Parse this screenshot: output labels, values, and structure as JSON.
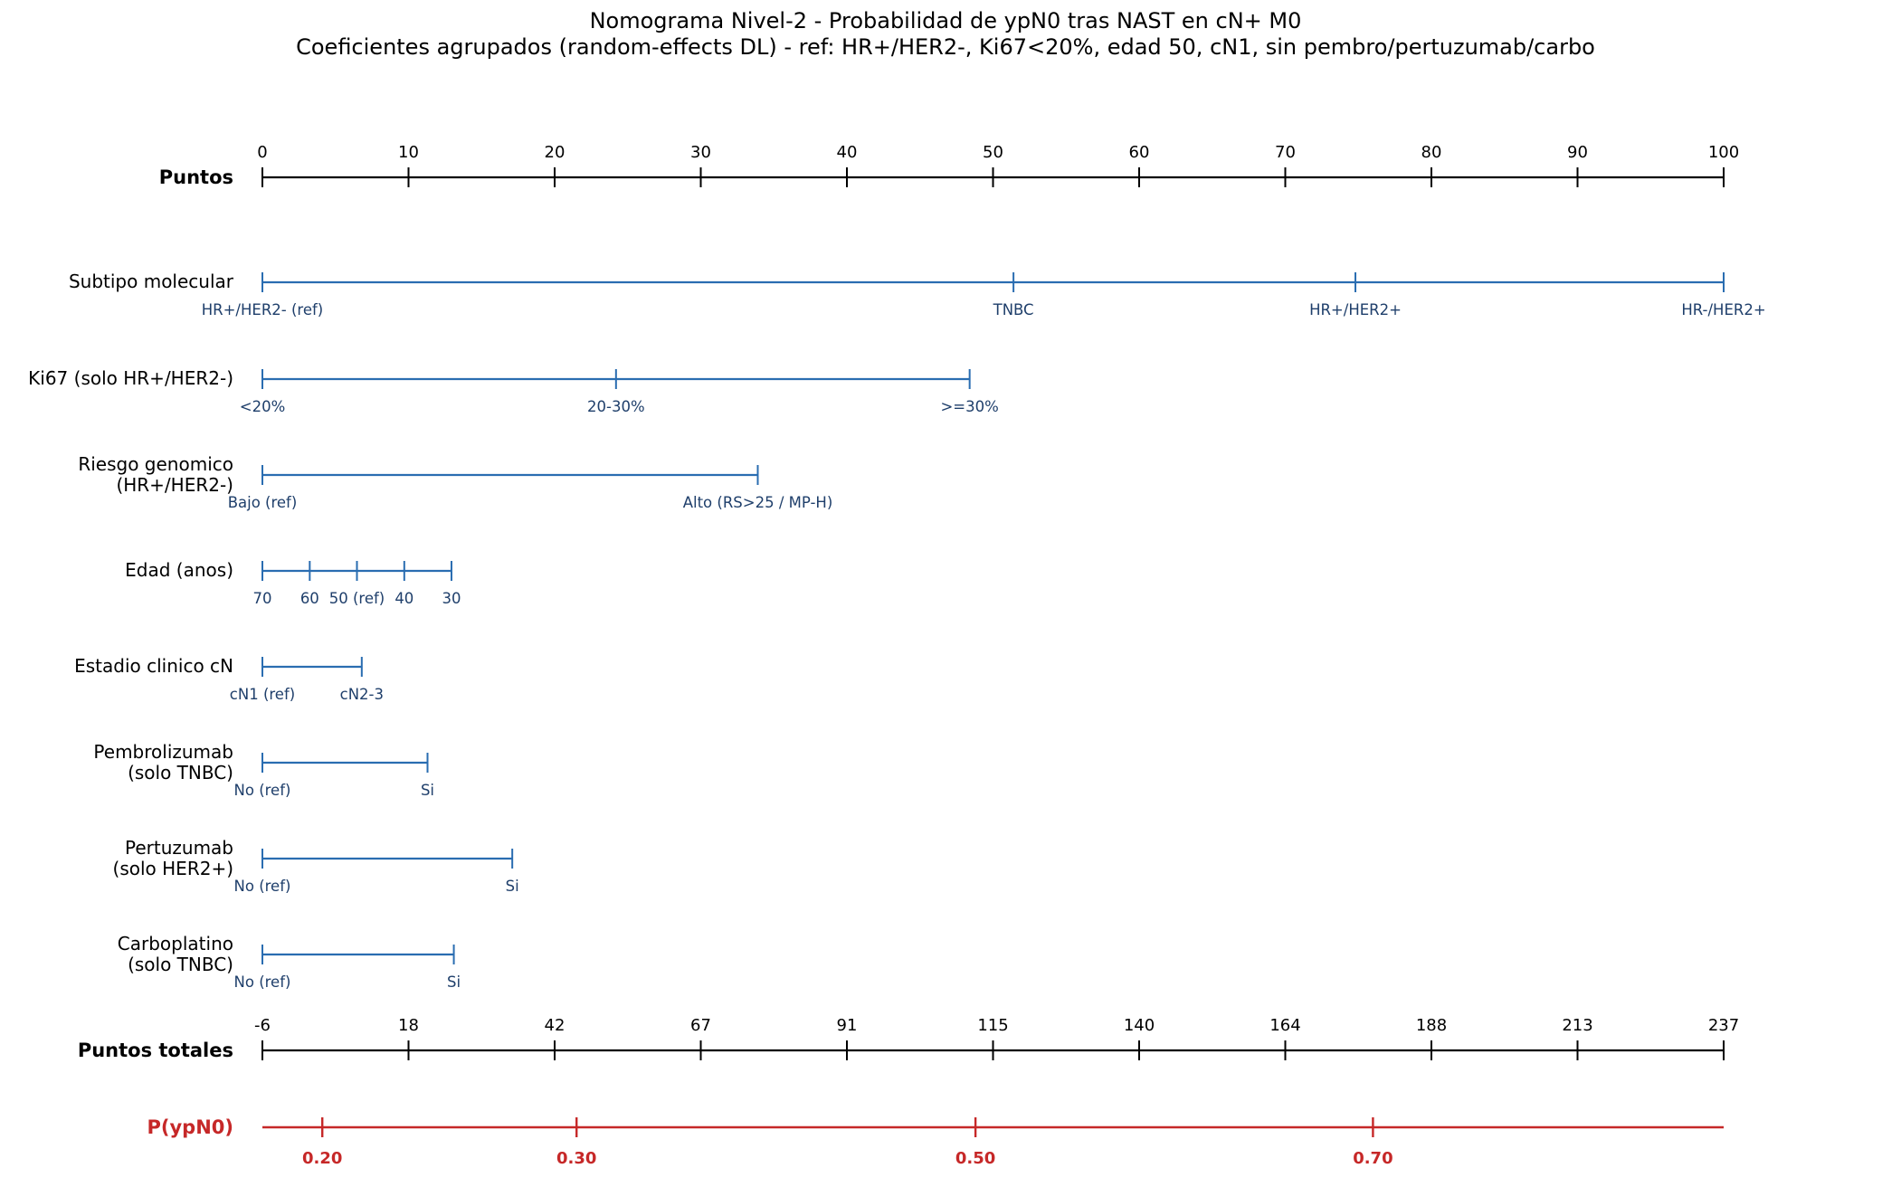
{
  "colors": {
    "axis": "#000000",
    "predictor": "#2a6db1",
    "predictor_text": "#1f3f6b",
    "probability": "#c62828"
  },
  "chart_data": {
    "type": "nomogram",
    "title": "Nomograma Nivel-2 - Probabilidad de ypN0 tras NAST en cN+ M0",
    "subtitle": "Coeficientes agrupados (random-effects DL) - ref: HR+/HER2-, Ki67<20%, edad 50, cN1, sin pembro/pertuzumab/carbo",
    "points_axis": {
      "label": "Puntos",
      "range": [
        0,
        100
      ],
      "ticks": [
        0,
        10,
        20,
        30,
        40,
        50,
        60,
        70,
        80,
        90,
        100
      ]
    },
    "predictors": [
      {
        "label": [
          "Subtipo molecular"
        ],
        "levels": [
          {
            "name": "HR+/HER2- (ref)",
            "points": 0
          },
          {
            "name": "TNBC",
            "points": 51.4
          },
          {
            "name": "HR+/HER2+",
            "points": 74.8
          },
          {
            "name": "HR-/HER2+",
            "points": 100
          }
        ]
      },
      {
        "label": [
          "Ki67 (solo HR+/HER2-)"
        ],
        "levels": [
          {
            "name": "<20%",
            "points": 0
          },
          {
            "name": "20-30%",
            "points": 24.2
          },
          {
            "name": ">=30%",
            "points": 48.4
          }
        ]
      },
      {
        "label": [
          "Riesgo genomico",
          "(HR+/HER2-)"
        ],
        "levels": [
          {
            "name": "Bajo (ref)",
            "points": 0
          },
          {
            "name": "Alto (RS>25 / MP-H)",
            "points": 33.9
          }
        ]
      },
      {
        "label": [
          "Edad (anos)"
        ],
        "levels": [
          {
            "name": "70",
            "points": 0
          },
          {
            "name": "60",
            "points": 3.24
          },
          {
            "name": "50 (ref)",
            "points": 6.47
          },
          {
            "name": "40",
            "points": 9.71
          },
          {
            "name": "30",
            "points": 12.94
          }
        ]
      },
      {
        "label": [
          "Estadio clinico cN"
        ],
        "levels": [
          {
            "name": "cN1 (ref)",
            "points": 0
          },
          {
            "name": "cN2-3",
            "points": 6.8
          }
        ]
      },
      {
        "label": [
          "Pembrolizumab",
          "(solo TNBC)"
        ],
        "levels": [
          {
            "name": "No (ref)",
            "points": 0
          },
          {
            "name": "Si",
            "points": 11.3
          }
        ]
      },
      {
        "label": [
          "Pertuzumab",
          "(solo HER2+)"
        ],
        "levels": [
          {
            "name": "No (ref)",
            "points": 0
          },
          {
            "name": "Si",
            "points": 17.1
          }
        ]
      },
      {
        "label": [
          "Carboplatino",
          "(solo TNBC)"
        ],
        "levels": [
          {
            "name": "No (ref)",
            "points": 0
          },
          {
            "name": "Si",
            "points": 13.1
          }
        ]
      }
    ],
    "total_points_axis": {
      "label": "Puntos totales",
      "ticks": [
        "-6",
        "18",
        "42",
        "67",
        "91",
        "115",
        "140",
        "164",
        "188",
        "213",
        "237"
      ]
    },
    "probability_axis": {
      "label": "P(ypN0)",
      "ticks": [
        {
          "label": "0.20",
          "points": 4.1
        },
        {
          "label": "0.30",
          "points": 21.5
        },
        {
          "label": "0.50",
          "points": 48.8
        },
        {
          "label": "0.70",
          "points": 76.0
        }
      ],
      "range_points": [
        0,
        100
      ]
    }
  }
}
